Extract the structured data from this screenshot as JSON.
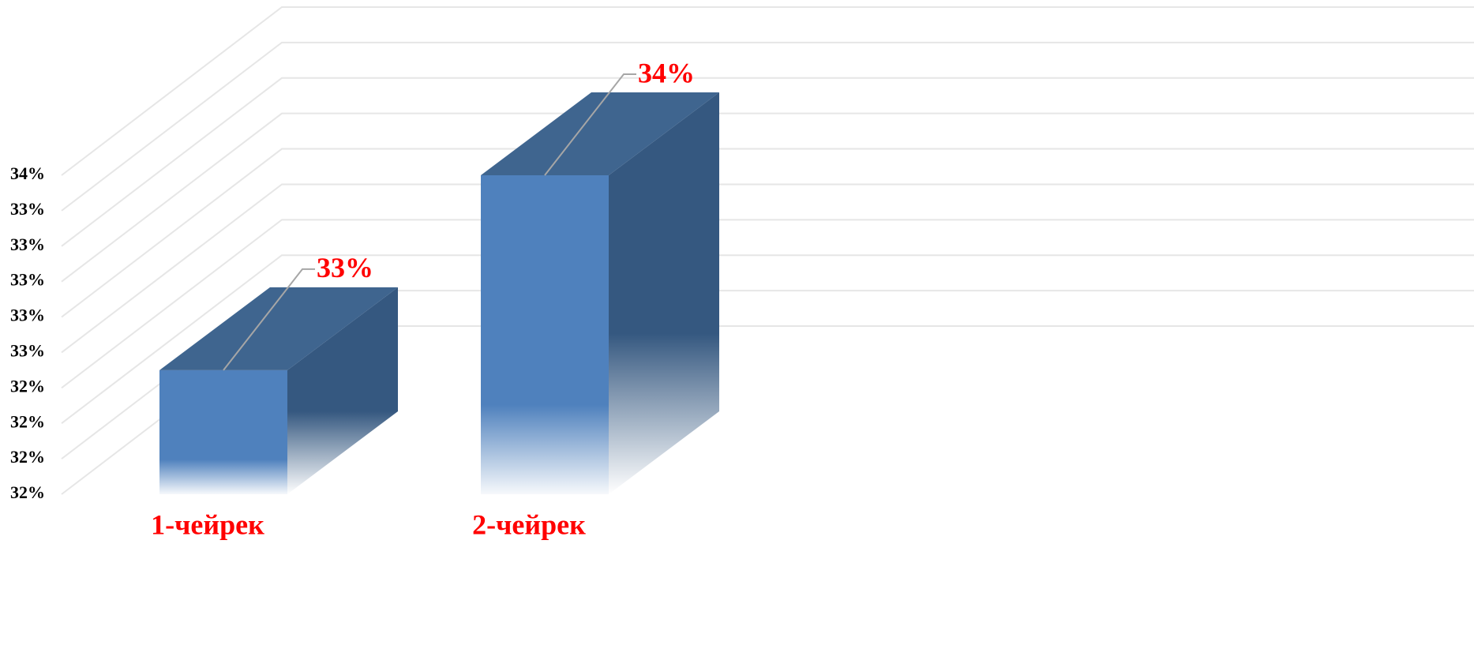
{
  "chart_data": {
    "type": "bar3d",
    "categories": [
      "1-чейрек",
      "2-чейрек"
    ],
    "values": [
      32.5,
      33.6
    ],
    "value_labels": [
      "33%",
      "34%"
    ],
    "color": "#4f81bd",
    "ylim": [
      31.8,
      33.6
    ],
    "yticks": [
      {
        "value": 31.8,
        "label": "32%"
      },
      {
        "value": 32.0,
        "label": "32%"
      },
      {
        "value": 32.2,
        "label": "32%"
      },
      {
        "value": 32.4,
        "label": "32%"
      },
      {
        "value": 32.6,
        "label": "33%"
      },
      {
        "value": 32.8,
        "label": "33%"
      },
      {
        "value": 33.0,
        "label": "33%"
      },
      {
        "value": 33.2,
        "label": "33%"
      },
      {
        "value": 33.4,
        "label": "33%"
      },
      {
        "value": 33.6,
        "label": "34%"
      }
    ],
    "grid": true
  }
}
